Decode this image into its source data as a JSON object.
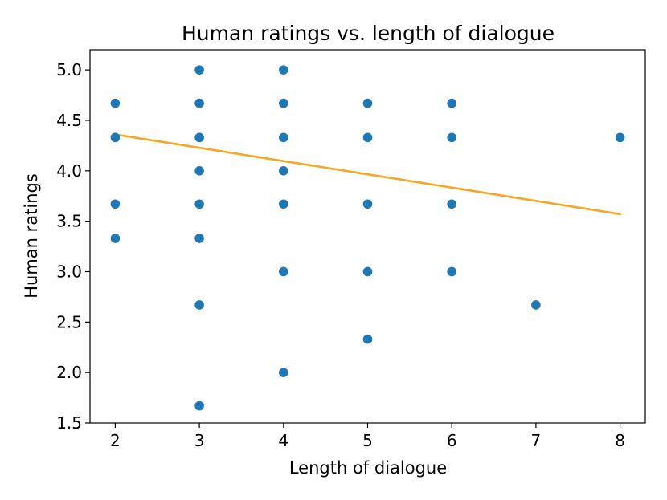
{
  "chart_data": {
    "type": "scatter",
    "title": "Human ratings vs. length of dialogue",
    "xlabel": "Length of dialogue",
    "ylabel": "Human ratings",
    "xlim": [
      1.7,
      8.3
    ],
    "ylim": [
      1.5,
      5.2
    ],
    "x_ticks": [
      "2",
      "3",
      "4",
      "5",
      "6",
      "7",
      "8"
    ],
    "y_ticks": [
      "1.5",
      "2.0",
      "2.5",
      "3.0",
      "3.5",
      "4.0",
      "4.5",
      "5.0"
    ],
    "grid": false,
    "series": [
      {
        "kind": "points",
        "color": "#1f77b4",
        "points": [
          [
            2,
            4.67
          ],
          [
            2,
            4.33
          ],
          [
            2,
            3.67
          ],
          [
            2,
            3.33
          ],
          [
            3,
            5.0
          ],
          [
            3,
            4.67
          ],
          [
            3,
            4.33
          ],
          [
            3,
            4.0
          ],
          [
            3,
            3.67
          ],
          [
            3,
            3.33
          ],
          [
            3,
            2.67
          ],
          [
            3,
            1.67
          ],
          [
            4,
            5.0
          ],
          [
            4,
            4.67
          ],
          [
            4,
            4.33
          ],
          [
            4,
            4.0
          ],
          [
            4,
            3.67
          ],
          [
            4,
            3.0
          ],
          [
            4,
            2.0
          ],
          [
            5,
            4.67
          ],
          [
            5,
            4.33
          ],
          [
            5,
            3.67
          ],
          [
            5,
            3.0
          ],
          [
            5,
            2.33
          ],
          [
            6,
            4.67
          ],
          [
            6,
            4.33
          ],
          [
            6,
            3.67
          ],
          [
            6,
            3.0
          ],
          [
            7,
            2.67
          ],
          [
            8,
            4.33
          ]
        ]
      },
      {
        "kind": "trend-line",
        "color": "#f5a623",
        "points": [
          [
            2,
            4.36
          ],
          [
            8,
            3.57
          ]
        ]
      }
    ]
  }
}
